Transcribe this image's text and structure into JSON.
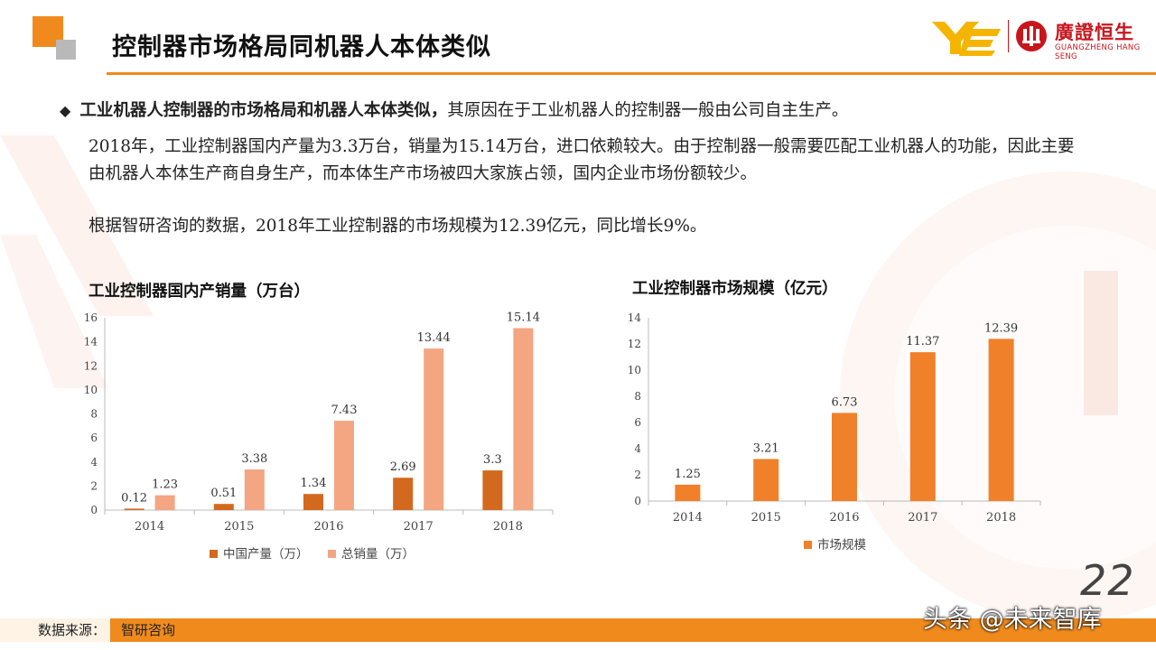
{
  "header": {
    "title": "控制器市场格局同机器人本体类似",
    "brand_zh": "廣證恒生",
    "brand_en": "GUANGZHENG HANG SENG"
  },
  "body": {
    "bullet_bold": "工业机器人控制器的市场格局和机器人本体类似，",
    "bullet_rest": "其原因在于工业机器人的控制器一般由公司自主生产。",
    "para1": "2018年，工业控制器国内产量为3.3万台，销量为15.14万台，进口依赖较大。由于控制器一般需要匹配工业机器人的功能，因此主要由机器人本体生产商自身生产，而本体生产市场被四大家族占领，国内企业市场份额较少。",
    "para2": "根据智研咨询的数据，2018年工业控制器的市场规模为12.39亿元，同比增长9%。"
  },
  "chart_data": [
    {
      "type": "bar",
      "title": "工业控制器国内产销量（万台）",
      "categories": [
        "2014",
        "2015",
        "2016",
        "2017",
        "2018"
      ],
      "series": [
        {
          "name": "中国产量（万）",
          "values": [
            0.12,
            0.51,
            1.34,
            2.69,
            3.3
          ],
          "color": "#d2691e"
        },
        {
          "name": "总销量（万）",
          "values": [
            1.23,
            3.38,
            7.43,
            13.44,
            15.14
          ],
          "color": "#f4a582"
        }
      ],
      "ylim": [
        0,
        16
      ],
      "yticks": [
        0,
        2,
        4,
        6,
        8,
        10,
        12,
        14,
        16
      ],
      "legend": "bottom"
    },
    {
      "type": "bar",
      "title": "工业控制器市场规模（亿元）",
      "categories": [
        "2014",
        "2015",
        "2016",
        "2017",
        "2018"
      ],
      "series": [
        {
          "name": "市场规模",
          "values": [
            1.25,
            3.21,
            6.73,
            11.37,
            12.39
          ],
          "color": "#f0802a"
        }
      ],
      "ylim": [
        0,
        14
      ],
      "yticks": [
        0,
        2,
        4,
        6,
        8,
        10,
        12,
        14
      ],
      "legend": "bottom"
    }
  ],
  "footer": {
    "source_label": "数据来源：",
    "source_value": "智研咨询",
    "page_number": "22",
    "watermark": "头条 @未来智库"
  },
  "colors": {
    "accent": "#f08a1c",
    "brand_red": "#c8161d"
  }
}
